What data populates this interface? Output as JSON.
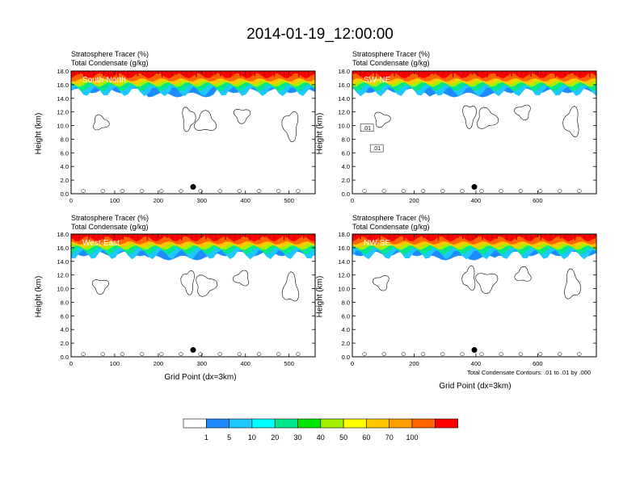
{
  "page": {
    "title": "2014-01-19_12:00:00"
  },
  "panel_headers": {
    "line1": "Stratosphere Tracer   (%)",
    "line2": "Total Condensate   (g/kg)"
  },
  "axis_labels": {
    "y": "Height (km)",
    "x": "Grid Point (dx=3km)"
  },
  "contour_note": "Total Condensate Contours: .01 to .01 by .000",
  "colors": {
    "levels": [
      "#ffffff",
      "#1e8cff",
      "#1ec8ff",
      "#00ffff",
      "#00e68c",
      "#00e600",
      "#a0f000",
      "#ffff00",
      "#ffc800",
      "#ffa000",
      "#ff6400",
      "#ff0000"
    ]
  },
  "colorbar": {
    "labels": [
      "1",
      "5",
      "10",
      "20",
      "30",
      "40",
      "50",
      "60",
      "70",
      "100"
    ]
  },
  "chart_data": [
    {
      "type": "heatmap",
      "title": "South-North",
      "xlim": [
        0,
        560
      ],
      "ylim": [
        0,
        18
      ],
      "xticks": [
        0,
        100,
        200,
        300,
        400,
        500
      ],
      "yticks": [
        "0.0",
        "2.0",
        "4.0",
        "6.0",
        "8.0",
        "10.0",
        "12.0",
        "14.0",
        "16.0",
        "18.0"
      ],
      "marker": {
        "x": 280,
        "y": 1.0
      }
    },
    {
      "type": "heatmap",
      "title": "SW-NE",
      "xlim": [
        0,
        790
      ],
      "ylim": [
        0,
        18
      ],
      "xticks": [
        0,
        200,
        400,
        600
      ],
      "yticks": [
        "0.0",
        "2.0",
        "4.0",
        "6.0",
        "8.0",
        "10.0",
        "12.0",
        "14.0",
        "16.0",
        "18.0"
      ],
      "marker": {
        "x": 395,
        "y": 1.0
      },
      "contour_labels": [
        ".01",
        ".01"
      ]
    },
    {
      "type": "heatmap",
      "title": "West-East",
      "xlim": [
        0,
        560
      ],
      "ylim": [
        0,
        18
      ],
      "xticks": [
        0,
        100,
        200,
        300,
        400,
        500
      ],
      "yticks": [
        "0.0",
        "2.0",
        "4.0",
        "6.0",
        "8.0",
        "10.0",
        "12.0",
        "14.0",
        "16.0",
        "18.0"
      ],
      "marker": {
        "x": 280,
        "y": 1.0
      }
    },
    {
      "type": "heatmap",
      "title": "NW-SE",
      "xlim": [
        0,
        790
      ],
      "ylim": [
        0,
        18
      ],
      "xticks": [
        0,
        200,
        400,
        600
      ],
      "yticks": [
        "0.0",
        "2.0",
        "4.0",
        "6.0",
        "8.0",
        "10.0",
        "12.0",
        "14.0",
        "16.0",
        "18.0"
      ],
      "marker": {
        "x": 395,
        "y": 1.0
      }
    }
  ]
}
